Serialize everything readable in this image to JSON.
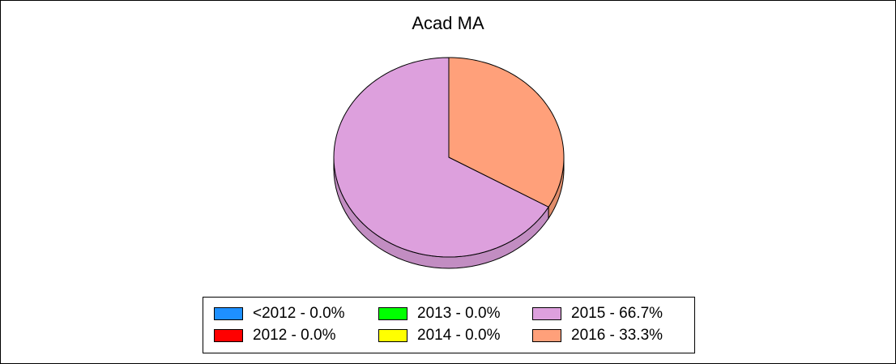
{
  "chart_data": {
    "type": "pie",
    "title": "Acad MA",
    "slices": [
      {
        "label": "<2012",
        "percent": 0.0,
        "display": "<2012 - 0.0%",
        "color": "#1e90ff"
      },
      {
        "label": "2012",
        "percent": 0.0,
        "display": "2012 - 0.0%",
        "color": "#ff0000"
      },
      {
        "label": "2013",
        "percent": 0.0,
        "display": "2013 - 0.0%",
        "color": "#00ff00"
      },
      {
        "label": "2014",
        "percent": 0.0,
        "display": "2014 - 0.0%",
        "color": "#ffff00"
      },
      {
        "label": "2015",
        "percent": 66.7,
        "display": "2015 - 66.7%",
        "color": "#dda0dd"
      },
      {
        "label": "2016",
        "percent": 33.3,
        "display": "2016 - 33.3%",
        "color": "#ffa07a"
      }
    ],
    "legend_position": "bottom",
    "style": "3d"
  }
}
